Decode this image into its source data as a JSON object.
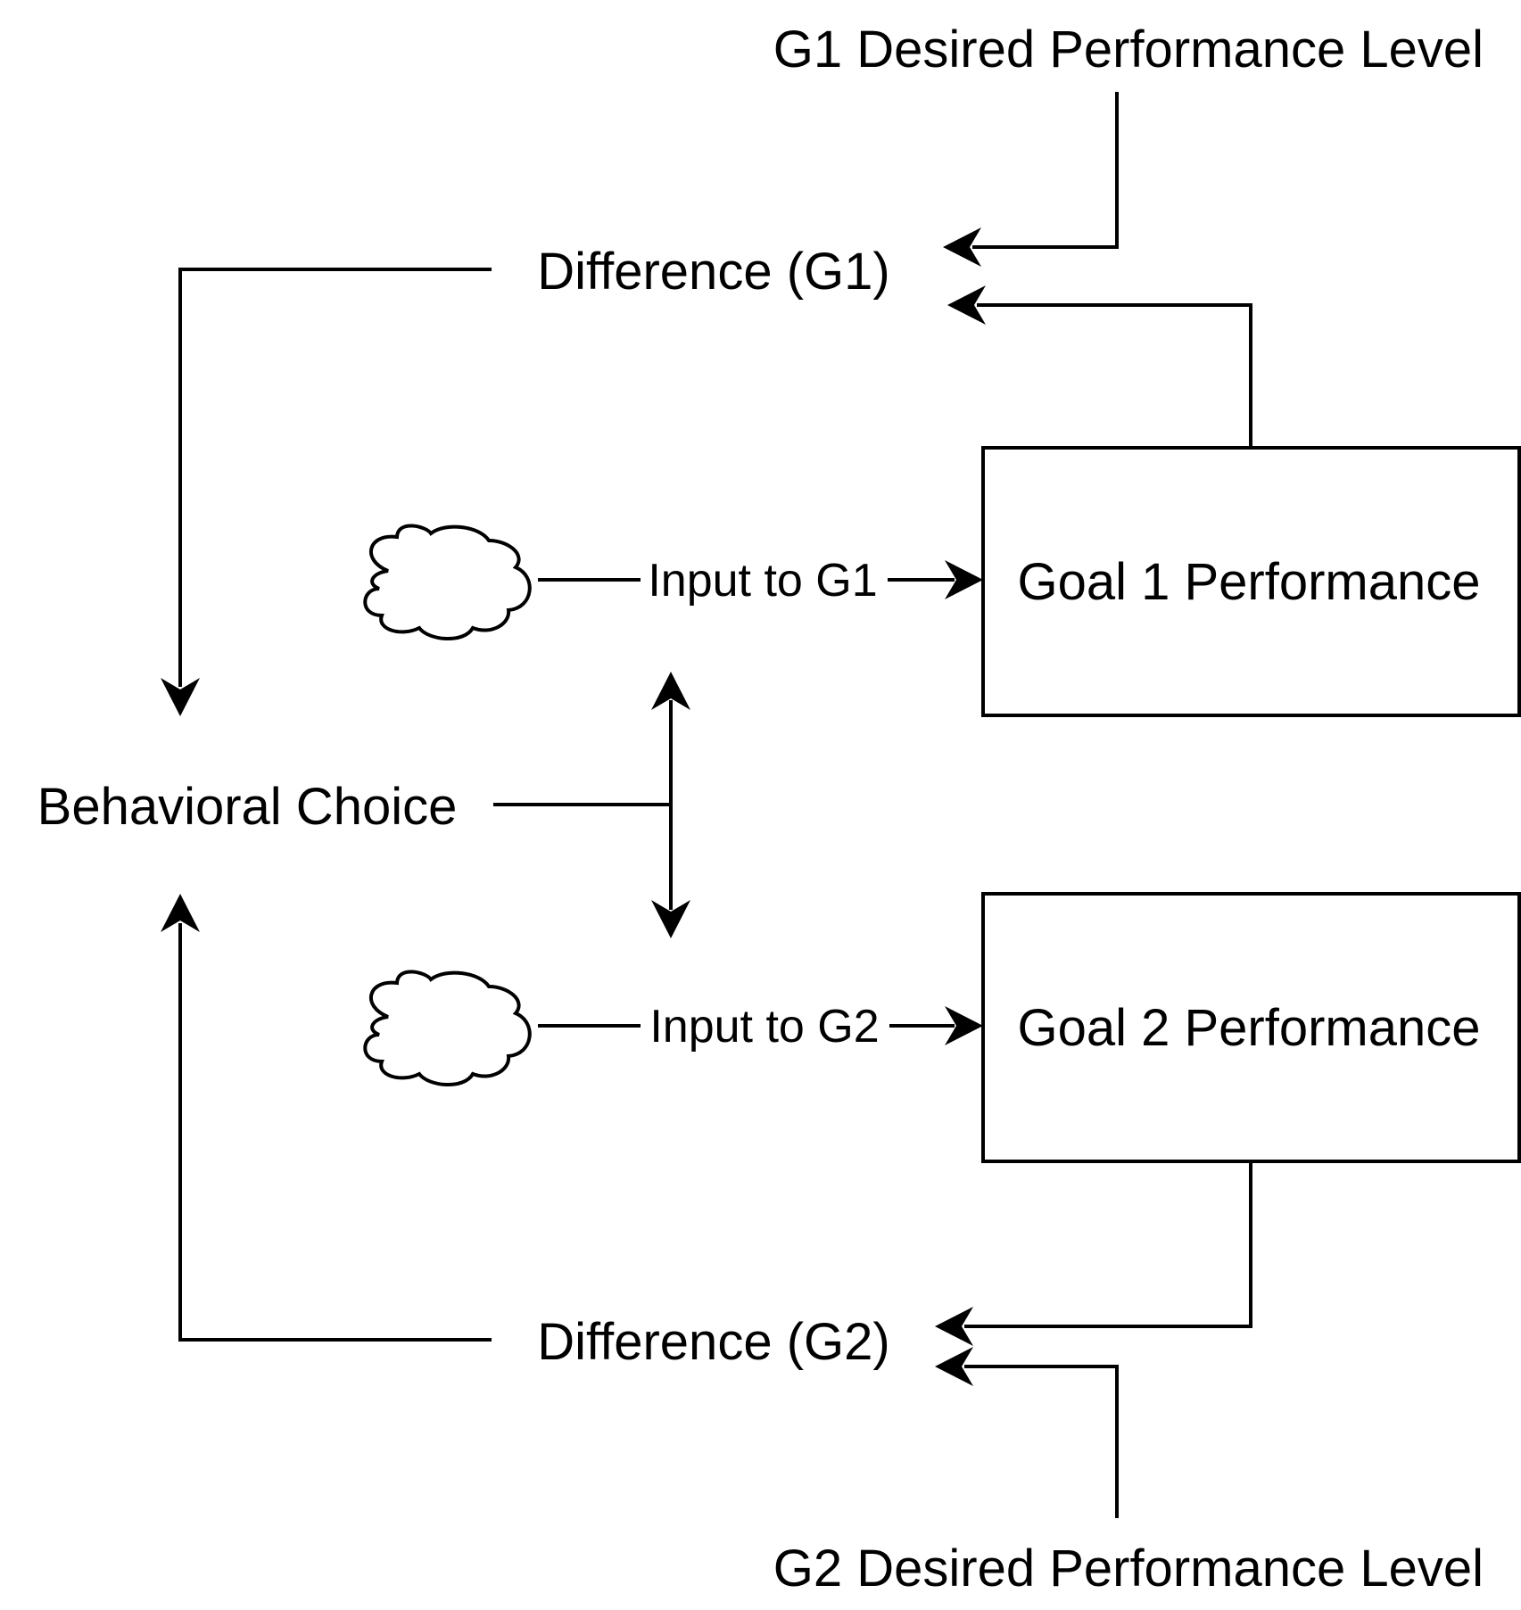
{
  "diagram": {
    "g1_desired_level": "G1 Desired Performance Level",
    "difference_g1": "Difference (G1)",
    "input_g1": "Input to G1",
    "goal1_performance": "Goal 1 Performance",
    "behavioral_choice": "Behavioral Choice",
    "input_g2": "Input to G2",
    "goal2_performance": "Goal 2 Performance",
    "difference_g2": "Difference (G2)",
    "g2_desired_level": "G2 Desired Performance Level"
  },
  "colors": {
    "line": "#000000",
    "background": "#ffffff"
  },
  "icons": [
    "cloud-icon-g1",
    "cloud-icon-g2",
    "arrowhead"
  ]
}
